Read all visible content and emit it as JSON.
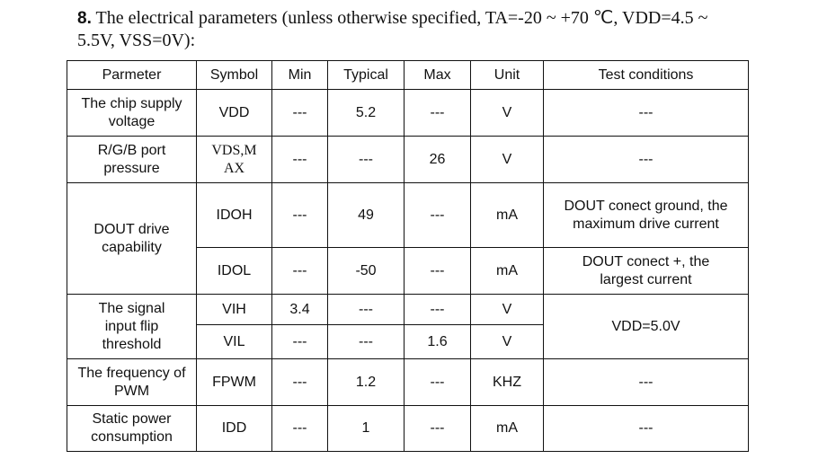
{
  "heading": {
    "number": "8.",
    "text": "The electrical parameters (unless otherwise specified, TA=-20 ~ +70 ℃, VDD=4.5 ~ 5.5V, VSS=0V):"
  },
  "table": {
    "header": [
      "Parmeter",
      "Symbol",
      "Min",
      "Typical",
      "Max",
      "Unit",
      "Test conditions"
    ],
    "rows": [
      [
        "The chip supply voltage",
        "VDD",
        "---",
        "5.2",
        "---",
        "V",
        "---"
      ],
      [
        "R/G/B port pressure",
        "VDS,MAX",
        "---",
        "---",
        "26",
        "V",
        "---"
      ],
      [
        "DOUT drive capability",
        "IDOH",
        "---",
        "49",
        "---",
        "mA",
        "DOUT conect ground, the maximum drive current"
      ],
      [
        "IDOL",
        "---",
        "-50",
        "---",
        "mA",
        "DOUT conect +, the largest current"
      ],
      [
        "The signal input flip threshold",
        "VIH",
        "3.4",
        "---",
        "---",
        "V",
        "VDD=5.0V"
      ],
      [
        "VIL",
        "---",
        "---",
        "1.6",
        "V"
      ],
      [
        "The frequency of PWM",
        "FPWM",
        "---",
        "1.2",
        "---",
        "KHZ",
        "---"
      ],
      [
        "Static power consumption",
        "IDD",
        "---",
        "1",
        "---",
        "mA",
        "---"
      ]
    ]
  }
}
